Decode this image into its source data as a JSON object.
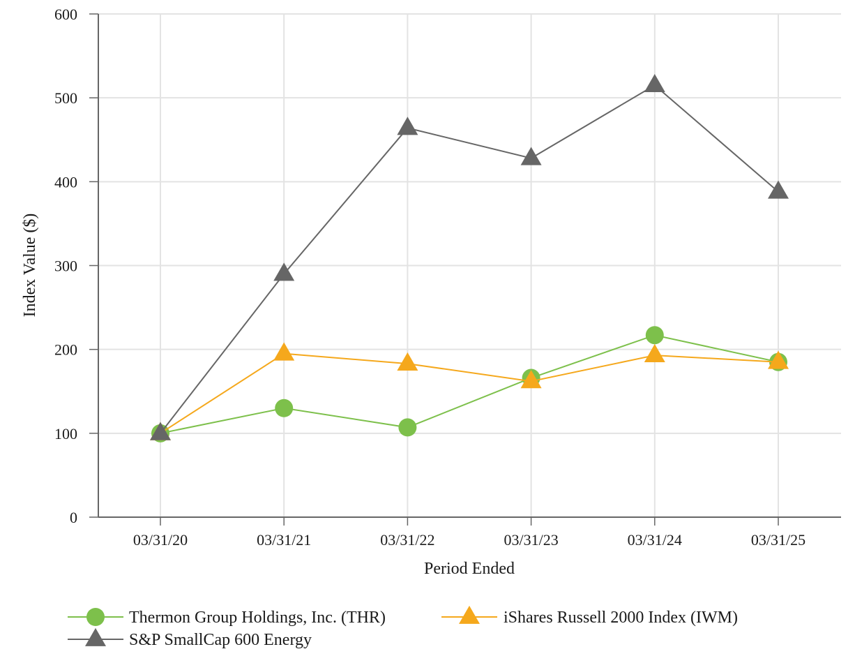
{
  "chart_data": {
    "type": "line",
    "title": "",
    "xlabel": "Period Ended",
    "ylabel": "Index Value ($)",
    "categories": [
      "03/31/20",
      "03/31/21",
      "03/31/22",
      "03/31/23",
      "03/31/24",
      "03/31/25"
    ],
    "ylim": [
      0,
      600
    ],
    "yticks": [
      0,
      100,
      200,
      300,
      400,
      500,
      600
    ],
    "grid": true,
    "legend_position": "bottom-left",
    "series": [
      {
        "name": "Thermon Group Holdings, Inc. (THR)",
        "marker": "circle",
        "color": "#7dc04b",
        "values": [
          100,
          130,
          107,
          166,
          217,
          185
        ]
      },
      {
        "name": "iShares Russell 2000 Index (IWM)",
        "marker": "triangle",
        "color": "#f5a81c",
        "values": [
          100,
          195,
          183,
          162,
          193,
          185
        ]
      },
      {
        "name": "S&P SmallCap 600 Energy",
        "marker": "triangle",
        "color": "#666666",
        "values": [
          100,
          290,
          464,
          428,
          515,
          388
        ]
      }
    ]
  }
}
